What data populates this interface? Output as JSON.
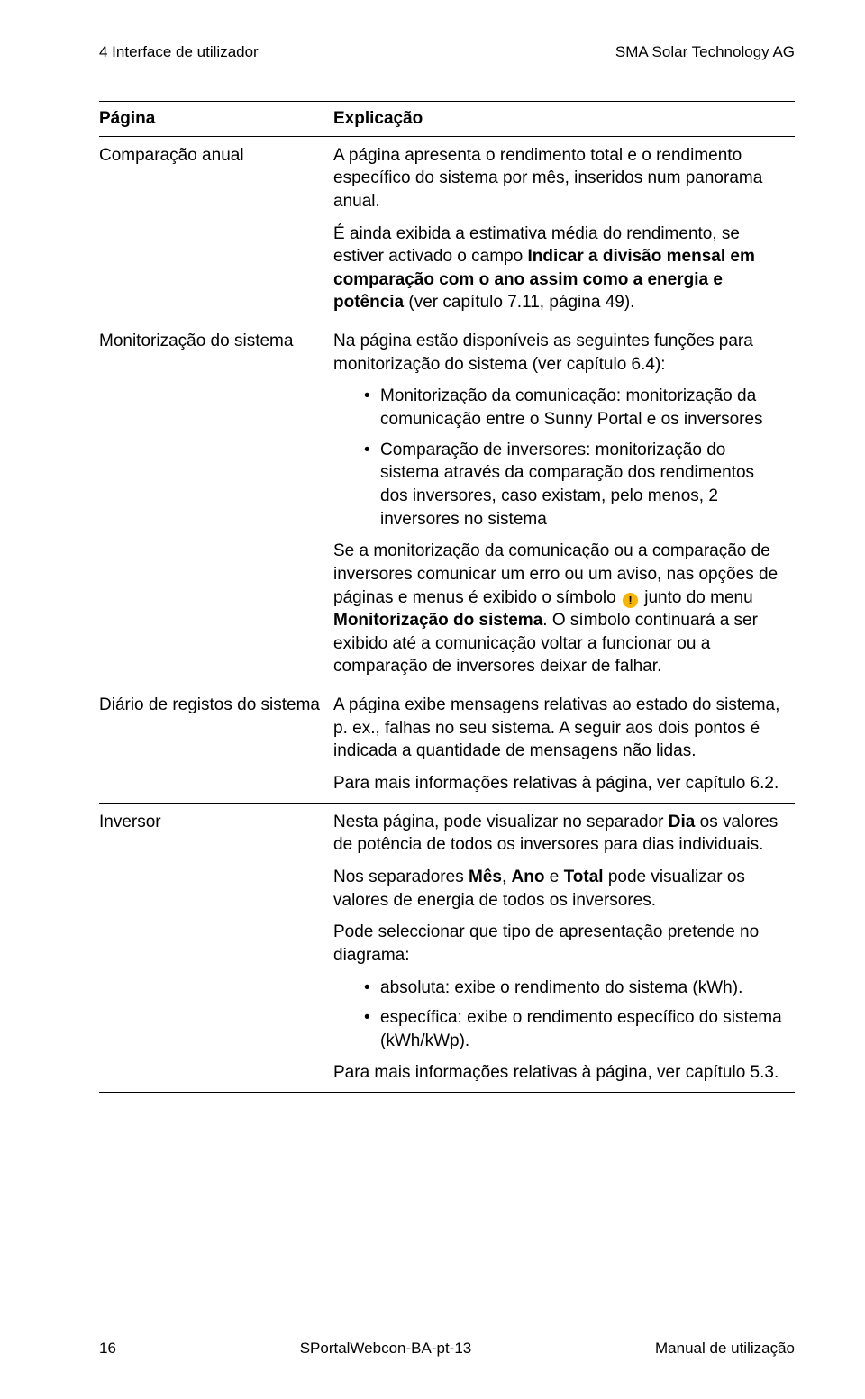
{
  "header": {
    "left": "4 Interface de utilizador",
    "right": "SMA Solar Technology AG"
  },
  "table": {
    "col_page": "Página",
    "col_expl": "Explicação",
    "rows": {
      "comparacao": {
        "term": "Comparação anual",
        "p1_a": "A página apresenta o rendimento total e o rendimento específico do sistema por mês, inseridos num panorama anual.",
        "p2_a": "É ainda exibida a estimativa média do rendimento, se estiver activado o campo ",
        "p2_b": "Indicar a divisão mensal em comparação com o ano assim como a energia e potência",
        "p2_c": " (ver capítulo 7.11, página 49)."
      },
      "monit": {
        "term": "Monitorização do sistema",
        "p1": "Na página estão disponíveis as seguintes funções para monitorização do sistema (ver capítulo 6.4):",
        "b1": "Monitorização da comunicação: monitorização da comunicação entre o Sunny Portal e os inversores",
        "b2": "Comparação de inversores: monitorização do sistema através da comparação dos rendimentos dos inversores, caso existam, pelo menos, 2 inversores no sistema",
        "p2_a": "Se a monitorização da comunicação ou a comparação de inversores comunicar um erro ou um aviso, nas opções de páginas e menus é exibido o símbolo ",
        "p2_b": " junto do menu ",
        "p2_c": "Monitorização do sistema",
        "p2_d": ". O símbolo continuará a ser exibido até a comunicação voltar a funcionar ou a comparação de inversores deixar de falhar.",
        "icon_glyph": "!"
      },
      "diario": {
        "term": "Diário de registos do sistema",
        "p1": "A página exibe mensagens relativas ao estado do sistema, p. ex., falhas no seu sistema. A seguir aos dois pontos é indicada a quantidade de mensagens não lidas.",
        "p2": "Para mais informações relativas à página, ver capítulo 6.2."
      },
      "inversor": {
        "term": "Inversor",
        "p1_a": "Nesta página, pode visualizar no separador ",
        "p1_b": "Dia",
        "p1_c": " os valores de potência de todos os inversores para dias individuais.",
        "p2_a": "Nos separadores ",
        "p2_b": "Mês",
        "p2_c": ", ",
        "p2_d": "Ano",
        "p2_e": " e ",
        "p2_f": "Total",
        "p2_g": " pode visualizar os valores de energia de todos os inversores.",
        "p3": "Pode seleccionar que tipo de apresentação pretende no diagrama:",
        "b1": "absoluta: exibe o rendimento do sistema (kWh).",
        "b2": "específica: exibe o rendimento específico do sistema (kWh/kWp).",
        "p4": "Para mais informações relativas à página, ver capítulo 5.3."
      }
    }
  },
  "footer": {
    "page_no": "16",
    "doc_id": "SPortalWebcon-BA-pt-13",
    "right": "Manual de utilização"
  }
}
